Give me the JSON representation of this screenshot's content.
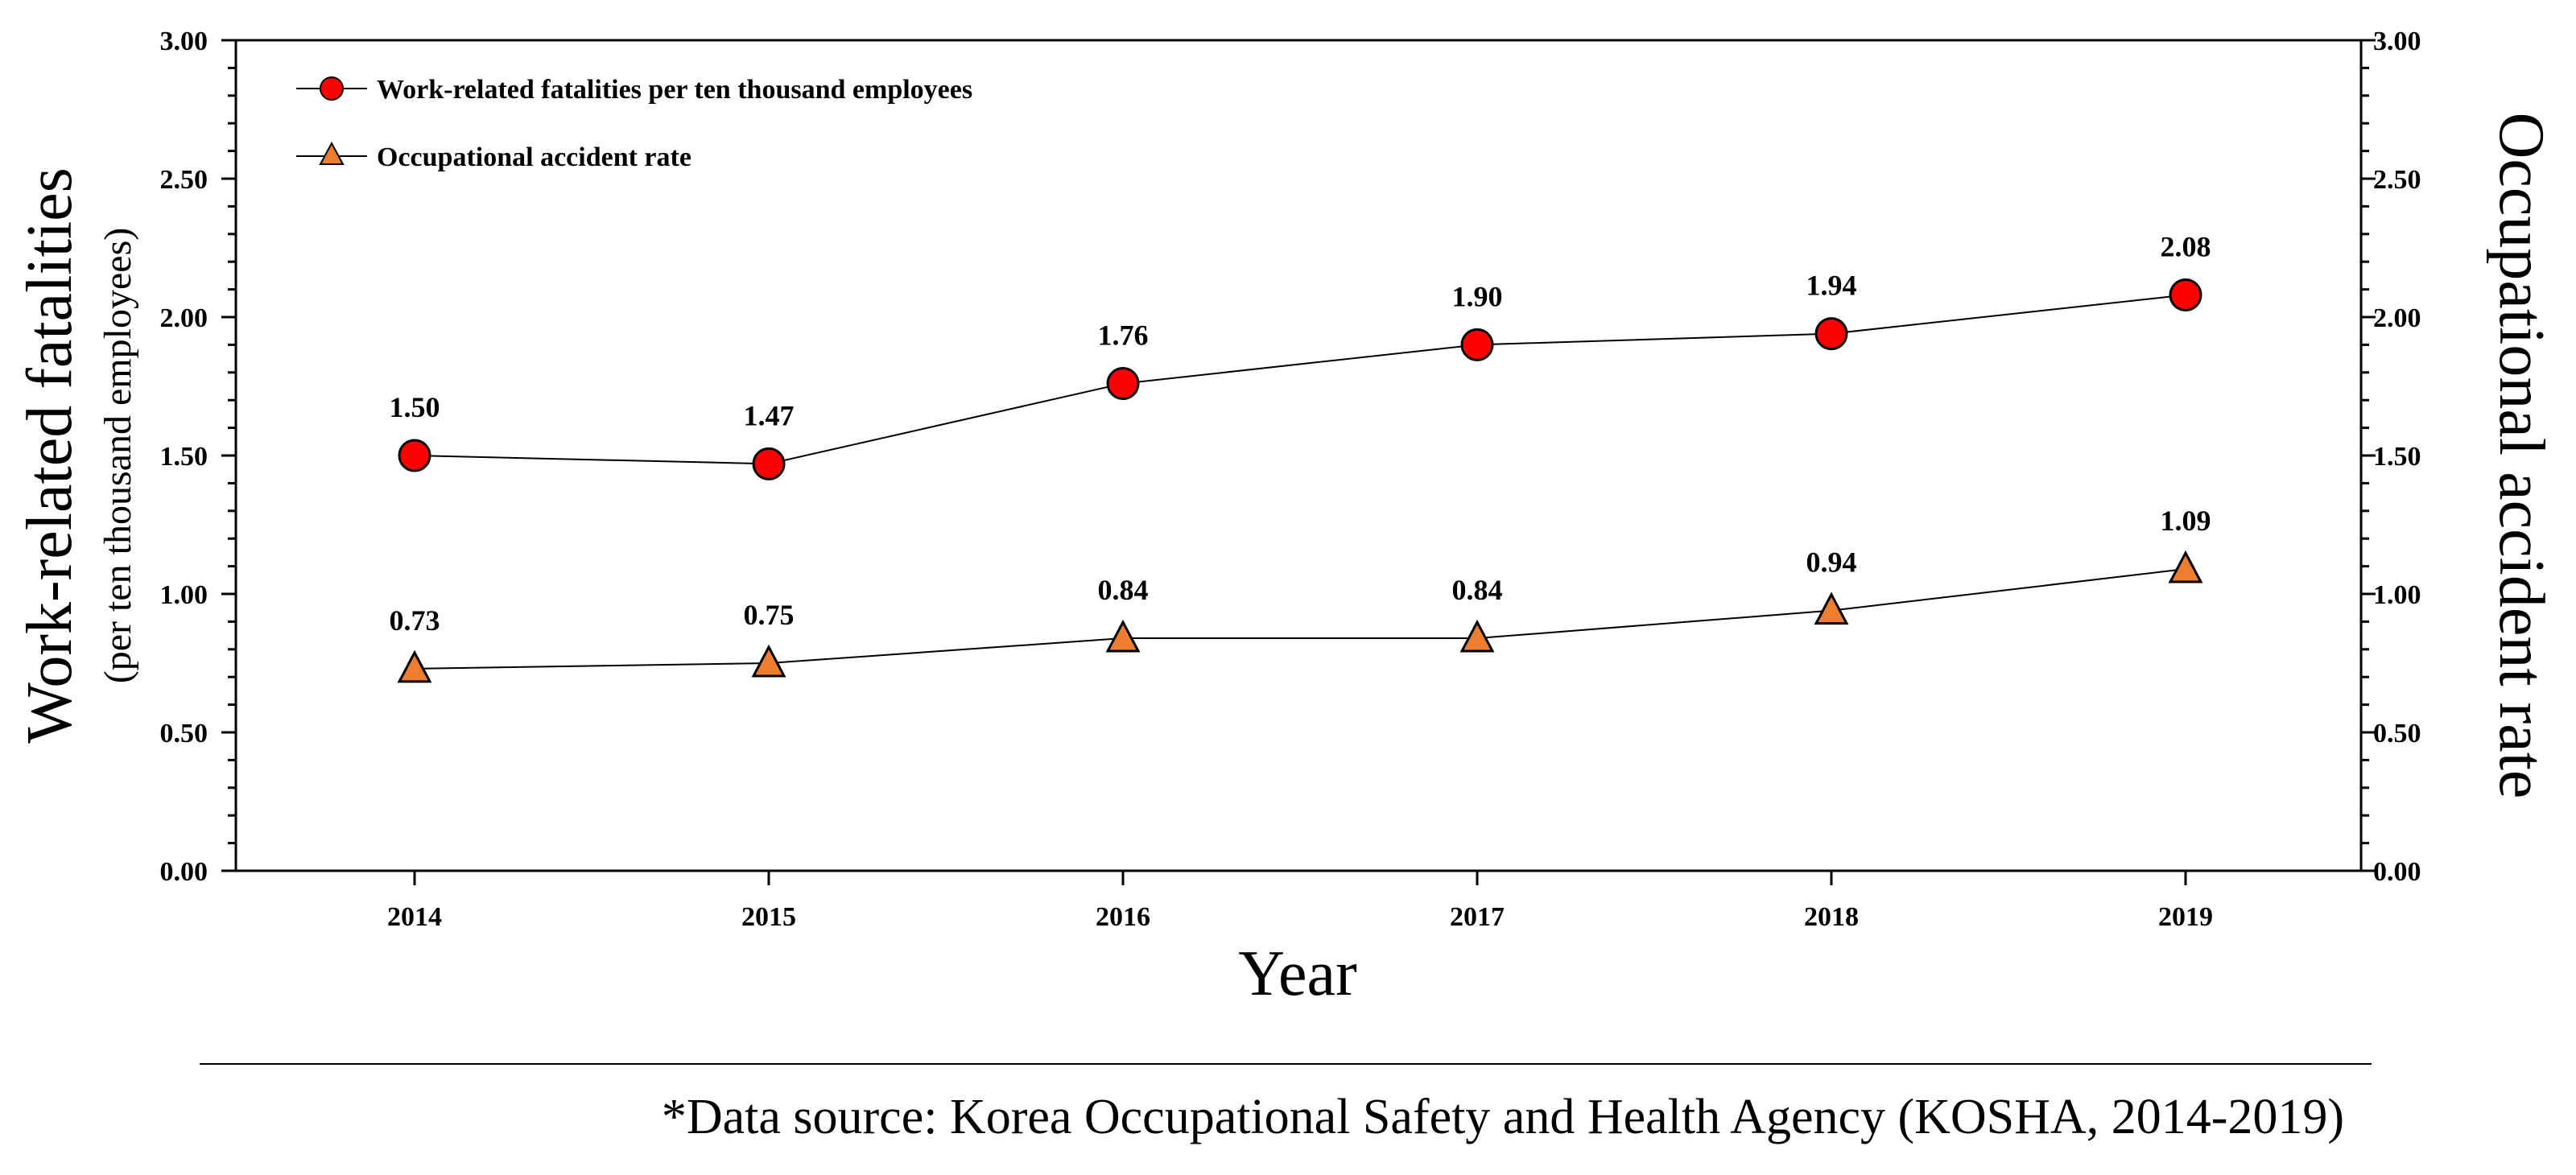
{
  "chart_data": {
    "type": "line",
    "categories": [
      "2014",
      "2015",
      "2016",
      "2017",
      "2018",
      "2019"
    ],
    "series": [
      {
        "name": "Work-related fatalities per ten thousand employees",
        "values": [
          1.5,
          1.47,
          1.76,
          1.9,
          1.94,
          2.08
        ],
        "labels": [
          "1.50",
          "1.47",
          "1.76",
          "1.90",
          "1.94",
          "2.08"
        ],
        "marker": "circle",
        "color": "#ff0000",
        "axis": "left"
      },
      {
        "name": "Occupational accident rate",
        "values": [
          0.73,
          0.75,
          0.84,
          0.84,
          0.94,
          1.09
        ],
        "labels": [
          "0.73",
          "0.75",
          "0.84",
          "0.84",
          "0.94",
          "1.09"
        ],
        "marker": "triangle",
        "color": "#ed7d31",
        "axis": "right"
      }
    ],
    "xlabel": "Year",
    "ylabel": "Work-related fatalities",
    "ylabel_sub": "(per ten thousand employees)",
    "y2label": "Occupational accident rate",
    "ylim": [
      0,
      3.0
    ],
    "y2lim": [
      0,
      3.0
    ],
    "yticks": [
      "0.00",
      "0.50",
      "1.00",
      "1.50",
      "2.00",
      "2.50",
      "3.00"
    ],
    "legend_position": "top-left",
    "grid": false
  },
  "footnote": "*Data source: Korea Occupational Safety and Health Agency (KOSHA, 2014-2019)"
}
